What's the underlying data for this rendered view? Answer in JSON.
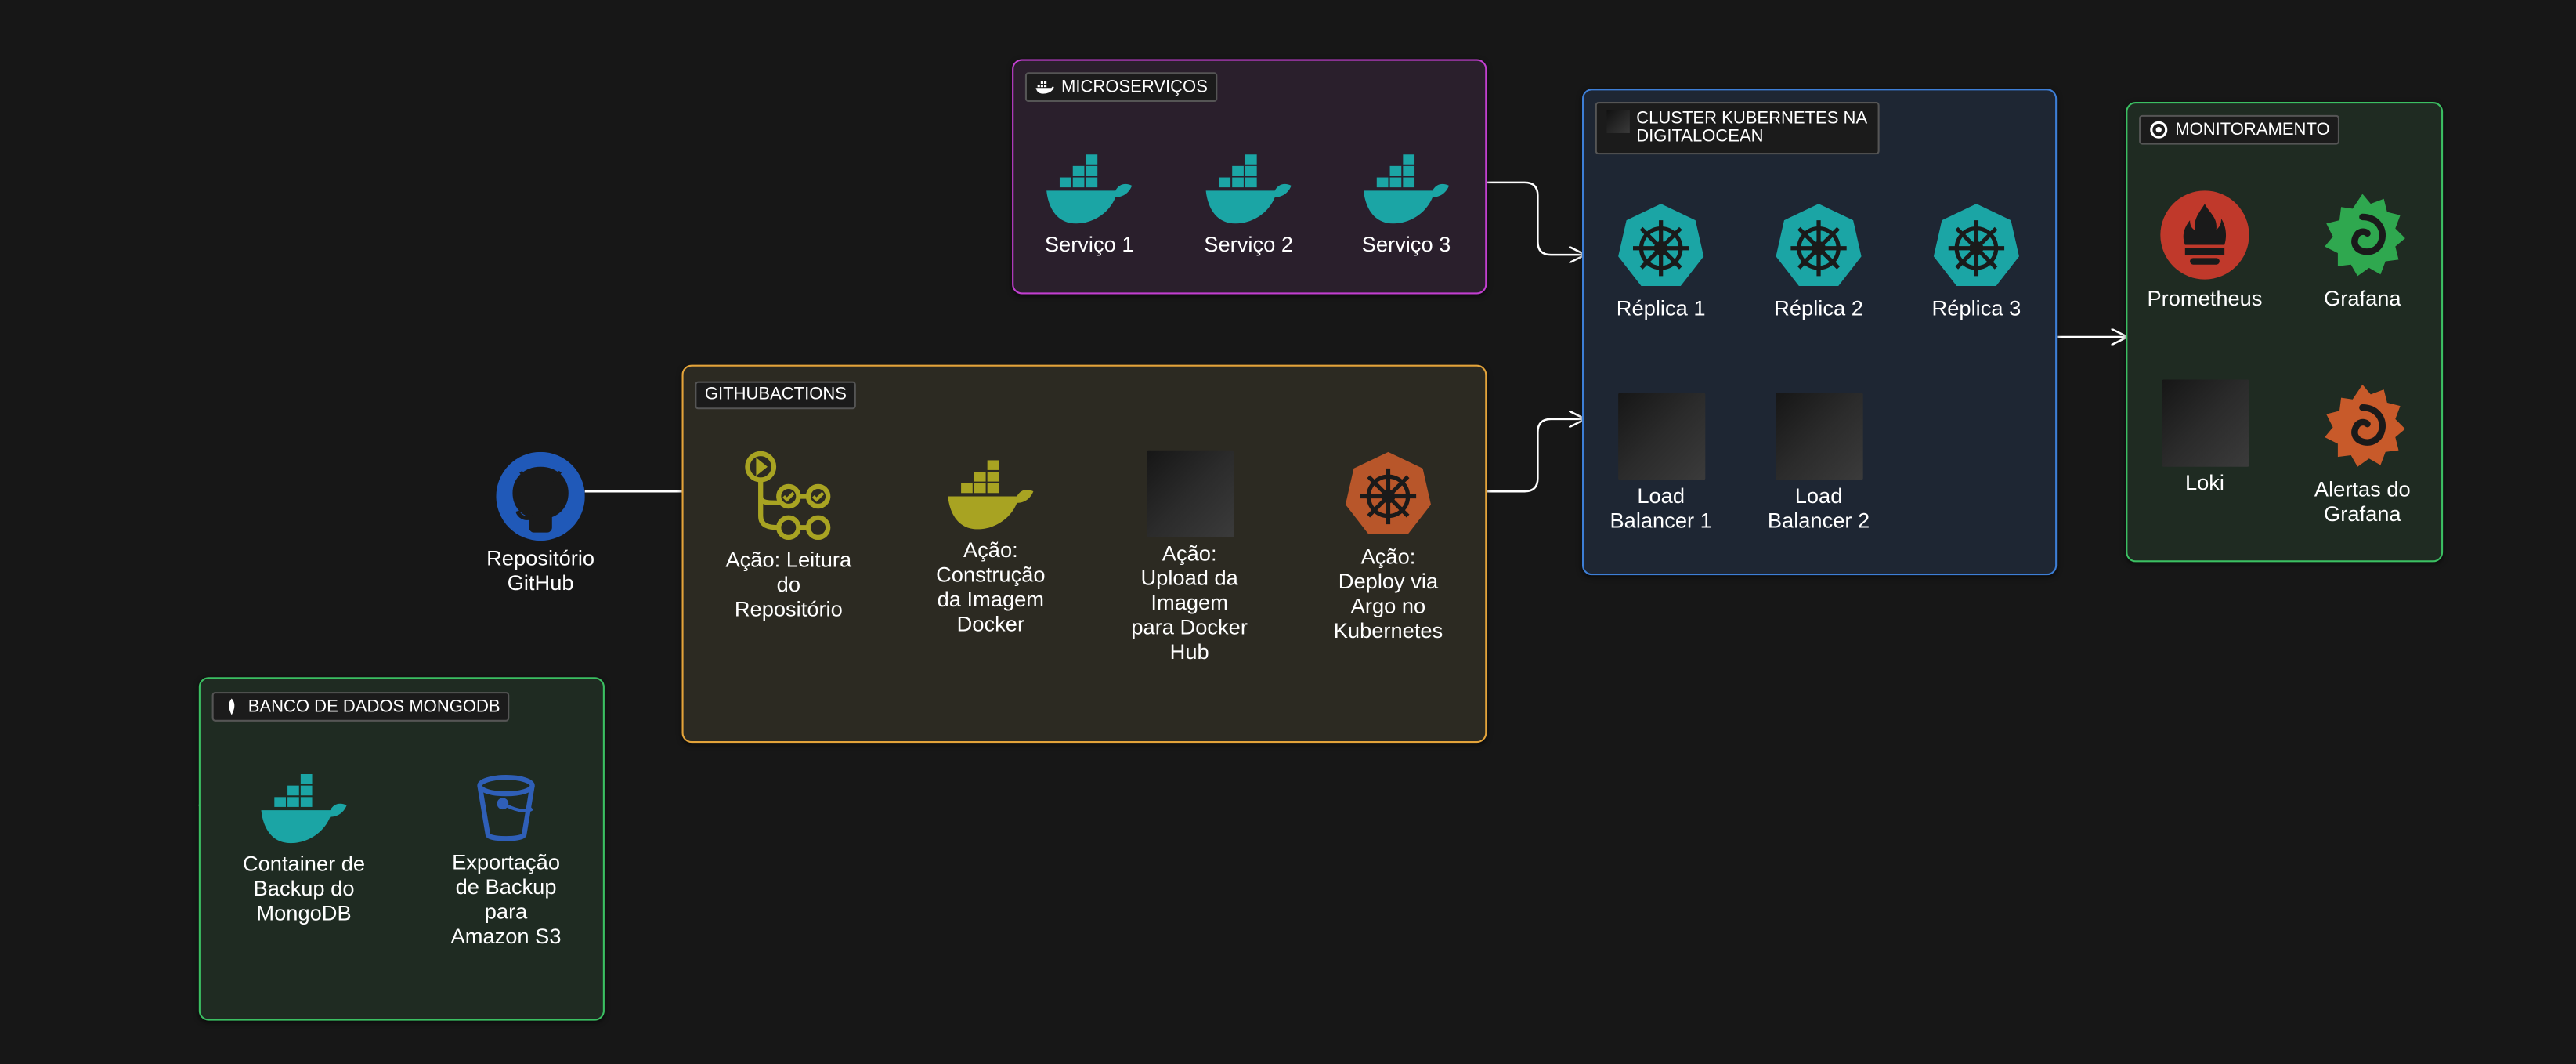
{
  "colors": {
    "background": "#171717",
    "docker_teal": "#1ba5a5",
    "k8s_teal": "#1ba5a5",
    "gha_olive": "#a8a322",
    "argo_orange": "#b8562a",
    "github_blue": "#2059b8",
    "prometheus_red": "#c0392b",
    "grafana_green": "#2fa84f",
    "grafana_orange": "#c85a2a",
    "s3_blue": "#2f5fb8"
  },
  "groups": {
    "microservices": {
      "label": "MICROSERVIÇOS",
      "icon": "docker-icon"
    },
    "github_actions": {
      "label": "GITHUBACTIONS"
    },
    "k8s_cluster": {
      "label_line1": "CLUSTER KUBERNETES NA",
      "label_line2": "DIGITALOCEAN",
      "icon": "blank-square-icon"
    },
    "monitoring": {
      "label": "MONITORAMENTO",
      "icon": "grafana-icon"
    },
    "mongodb": {
      "label": "BANCO DE DADOS MONGODB",
      "icon": "mongodb-leaf-icon"
    }
  },
  "nodes": {
    "servico1": {
      "label": "Serviço 1",
      "icon": "docker-icon"
    },
    "servico2": {
      "label": "Serviço 2",
      "icon": "docker-icon"
    },
    "servico3": {
      "label": "Serviço 3",
      "icon": "docker-icon"
    },
    "replica1": {
      "label": "Réplica 1",
      "icon": "kubernetes-icon"
    },
    "replica2": {
      "label": "Réplica 2",
      "icon": "kubernetes-icon"
    },
    "replica3": {
      "label": "Réplica 3",
      "icon": "kubernetes-icon"
    },
    "lb1": {
      "line1": "Load",
      "line2": "Balancer 1",
      "icon": "blank-square-icon"
    },
    "lb2": {
      "line1": "Load",
      "line2": "Balancer 2",
      "icon": "blank-square-icon"
    },
    "prometheus": {
      "label": "Prometheus",
      "icon": "prometheus-icon"
    },
    "grafana": {
      "label": "Grafana",
      "icon": "grafana-icon"
    },
    "loki": {
      "label": "Loki",
      "icon": "blank-square-icon"
    },
    "grafana_alerts": {
      "line1": "Alertas do",
      "line2": "Grafana",
      "icon": "grafana-icon"
    },
    "github_repo": {
      "line1": "Repositório",
      "line2": "GitHub",
      "icon": "github-icon"
    },
    "acao_leitura": {
      "line1": "Ação: Leitura",
      "line2": "do",
      "line3": "Repositório",
      "icon": "github-actions-icon"
    },
    "acao_construcao": {
      "line1": "Ação:",
      "line2": "Construção",
      "line3": "da Imagem",
      "line4": "Docker",
      "icon": "docker-icon"
    },
    "acao_upload": {
      "line1": "Ação:",
      "line2": "Upload da",
      "line3": "Imagem",
      "line4": "para Docker",
      "line5": "Hub",
      "icon": "blank-square-icon"
    },
    "acao_deploy": {
      "line1": "Ação:",
      "line2": "Deploy via",
      "line3": "Argo no",
      "line4": "Kubernetes",
      "icon": "argo-helm-icon"
    },
    "mongo_backup": {
      "line1": "Container de",
      "line2": "Backup do",
      "line3": "MongoDB",
      "icon": "docker-icon"
    },
    "s3_export": {
      "line1": "Exportação",
      "line2": "de Backup",
      "line3": "para",
      "line4": "Amazon S3",
      "icon": "s3-bucket-icon"
    }
  }
}
